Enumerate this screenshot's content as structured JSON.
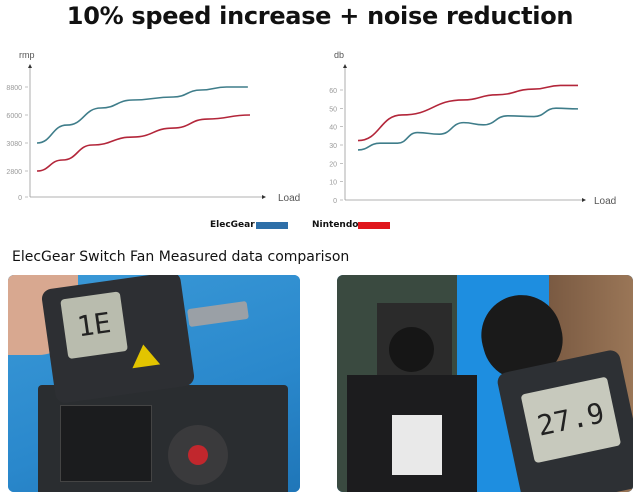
{
  "title": "10% speed increase + noise reduction",
  "subtitle": "ElecGear Switch Fan Measured data comparison",
  "legend": [
    {
      "label": "ElecGear",
      "color": "#2e6fa8"
    },
    {
      "label": "Nintendo",
      "color": "#e0161c"
    }
  ],
  "chart_data": [
    {
      "type": "line",
      "ylabel": "rmp",
      "xlabel": "Load",
      "yticks": [
        "0",
        "2800",
        "3080",
        "6000",
        "8800"
      ],
      "grid": false,
      "series": [
        {
          "name": "ElecGear",
          "color": "#3f7d8a",
          "x": [
            0,
            14,
            30,
            45,
            64,
            77,
            89,
            99
          ],
          "values": [
            3080,
            4950,
            6700,
            7500,
            7800,
            8500,
            8800,
            8800
          ]
        },
        {
          "name": "Nintendo",
          "color": "#b3263a",
          "x": [
            0,
            12,
            26,
            45,
            64,
            80,
            100
          ],
          "values": [
            2800,
            2910,
            3060,
            3700,
            4640,
            5580,
            6000
          ]
        }
      ]
    },
    {
      "type": "line",
      "ylabel": "db",
      "xlabel": "Load",
      "yticks": [
        "0",
        "10",
        "20",
        "30",
        "40",
        "50",
        "60"
      ],
      "ylim": [
        0,
        60
      ],
      "grid": false,
      "series": [
        {
          "name": "ElecGear",
          "color": "#3f7d8a",
          "x": [
            0,
            10,
            18,
            27,
            37,
            48,
            57,
            68,
            80,
            90,
            100
          ],
          "values": [
            27.3,
            31,
            31,
            36.8,
            35.9,
            42.2,
            41,
            45.9,
            45.5,
            50.1,
            49.7
          ]
        },
        {
          "name": "Nintendo",
          "color": "#b3263a",
          "x": [
            0,
            20,
            48,
            63,
            80,
            92,
            100
          ],
          "values": [
            32.4,
            46.4,
            54.6,
            57.4,
            60.5,
            62.5,
            62.5
          ]
        }
      ]
    }
  ],
  "photos": {
    "left_meter_display": "1E",
    "right_meter_display": "27.9"
  }
}
